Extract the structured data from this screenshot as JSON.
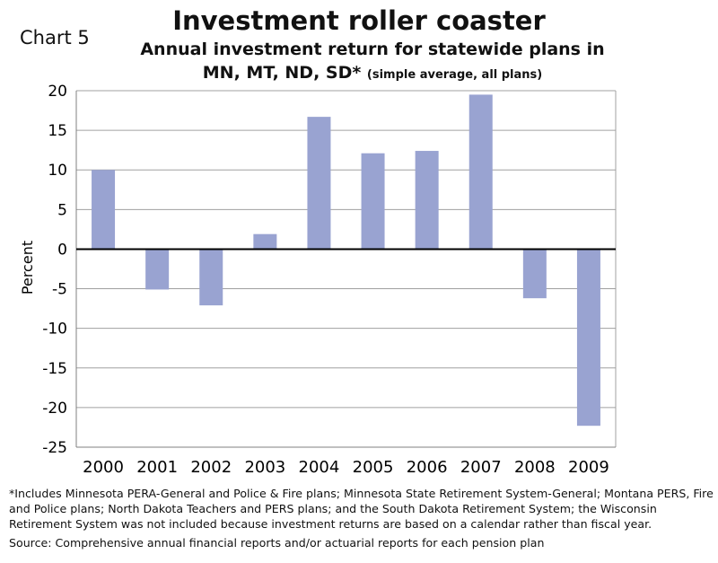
{
  "chart_label": "Chart 5",
  "chart_data": {
    "type": "bar",
    "title": "Investment roller coaster",
    "subtitle_line1": "Annual investment return for statewide plans in",
    "subtitle_line2": "MN, MT, ND, SD*",
    "subtitle_note": "(simple average, all plans)",
    "ylabel": "Percent",
    "xlabel": "",
    "ylim": [
      -25,
      20
    ],
    "yticks": [
      20,
      15,
      10,
      5,
      0,
      -5,
      -10,
      -15,
      -20,
      -25
    ],
    "categories": [
      "2000",
      "2001",
      "2002",
      "2003",
      "2004",
      "2005",
      "2006",
      "2007",
      "2008",
      "2009"
    ],
    "values": [
      10.0,
      -5.1,
      -7.1,
      1.9,
      16.7,
      12.1,
      12.4,
      19.5,
      -6.2,
      -22.3
    ],
    "grid": true,
    "bar_color": "#99a3d1",
    "zero_line_color": "#000000"
  },
  "footnote": "*Includes Minnesota PERA-General and Police & Fire plans; Minnesota State Retirement System-General; Montana PERS, Fire and Police plans; North Dakota Teachers and PERS plans; and the South Dakota Retirement System; the Wisconsin Retirement System was not included because investment returns are based on a calendar rather than fiscal year.",
  "source": "Source: Comprehensive annual financial reports and/or actuarial reports for each pension plan"
}
